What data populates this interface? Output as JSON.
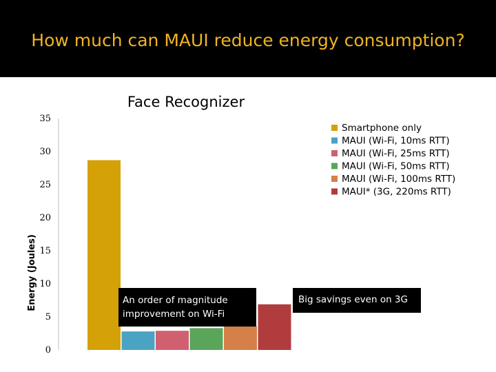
{
  "slide": {
    "title": "How much can MAUI reduce energy consumption?",
    "callouts": [
      "An order of magnitude improvement on Wi-Fi",
      "Big savings even on 3G"
    ]
  },
  "colors": {
    "header_bg": "#000000",
    "title_color": "#f0b323"
  },
  "chart_data": {
    "type": "bar",
    "title": "Face Recognizer",
    "ylabel": "Energy (Joules)",
    "xlabel": "",
    "ylim": [
      0,
      35
    ],
    "yticks": [
      0,
      5,
      10,
      15,
      20,
      25,
      30,
      35
    ],
    "legend_position": "right",
    "series": [
      {
        "name": "Smartphone only",
        "value": 28.7,
        "color": "#d4a106"
      },
      {
        "name": "MAUI (Wi-Fi, 10ms RTT)",
        "value": 2.8,
        "color": "#4ba3c3"
      },
      {
        "name": "MAUI (Wi-Fi, 25ms RTT)",
        "value": 2.9,
        "color": "#d06070"
      },
      {
        "name": "MAUI (Wi-Fi, 50ms RTT)",
        "value": 3.3,
        "color": "#5aa55a"
      },
      {
        "name": "MAUI (Wi-Fi, 100ms RTT)",
        "value": 3.6,
        "color": "#d48048"
      },
      {
        "name": "MAUI* (3G, 220ms RTT)",
        "value": 6.9,
        "color": "#b03c3e"
      }
    ]
  }
}
